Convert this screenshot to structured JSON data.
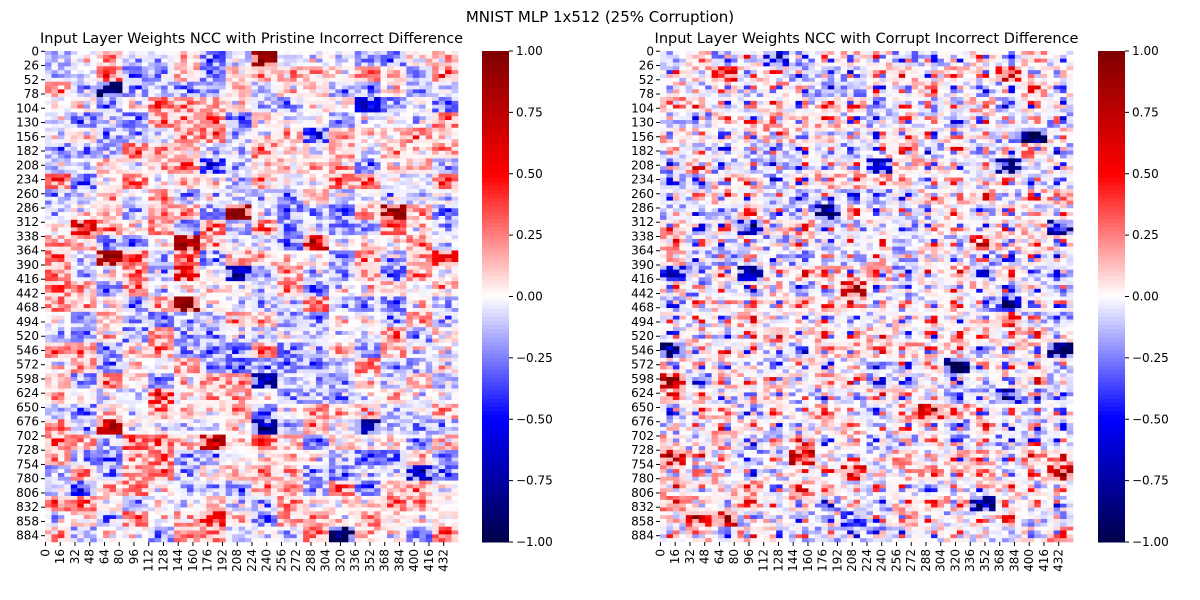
{
  "figure": {
    "suptitle": "MNIST MLP 1x512 (25% Corruption)"
  },
  "chart_data": [
    {
      "type": "heatmap",
      "title": "Input Layer Weights NCC with Pristine Incorrect Difference",
      "xlabel": "",
      "ylabel": "",
      "x_tick_labels": [
        "0",
        "16",
        "32",
        "48",
        "64",
        "80",
        "96",
        "112",
        "128",
        "144",
        "160",
        "176",
        "192",
        "208",
        "224",
        "240",
        "256",
        "272",
        "288",
        "304",
        "320",
        "336",
        "352",
        "368",
        "384",
        "400",
        "416",
        "432"
      ],
      "y_tick_labels": [
        "0",
        "26",
        "52",
        "78",
        "104",
        "130",
        "156",
        "182",
        "208",
        "234",
        "260",
        "286",
        "312",
        "338",
        "364",
        "390",
        "416",
        "442",
        "468",
        "494",
        "520",
        "546",
        "572",
        "598",
        "624",
        "650",
        "676",
        "702",
        "728",
        "754",
        "780",
        "806",
        "832",
        "858",
        "884"
      ],
      "xlim": [
        0,
        448
      ],
      "ylim": [
        0,
        896
      ],
      "colormap": "seismic",
      "colorbar": {
        "vmin": -1.0,
        "vmax": 1.0,
        "tick_labels": [
          "1.00",
          "0.75",
          "0.50",
          "0.25",
          "0.00",
          "−0.25",
          "−0.50",
          "−0.75",
          "−1.00"
        ]
      },
      "legend": "colorbar-right",
      "grid": false
    },
    {
      "type": "heatmap",
      "title": "Input Layer Weights NCC with Corrupt Incorrect Difference",
      "xlabel": "",
      "ylabel": "",
      "x_tick_labels": [
        "0",
        "16",
        "32",
        "48",
        "64",
        "80",
        "96",
        "112",
        "128",
        "144",
        "160",
        "176",
        "192",
        "208",
        "224",
        "240",
        "256",
        "272",
        "288",
        "304",
        "320",
        "336",
        "352",
        "368",
        "384",
        "400",
        "416",
        "432"
      ],
      "y_tick_labels": [
        "0",
        "26",
        "52",
        "78",
        "104",
        "130",
        "156",
        "182",
        "208",
        "234",
        "260",
        "286",
        "312",
        "338",
        "364",
        "390",
        "416",
        "442",
        "468",
        "494",
        "520",
        "546",
        "572",
        "598",
        "624",
        "650",
        "676",
        "702",
        "728",
        "754",
        "780",
        "806",
        "832",
        "858",
        "884"
      ],
      "xlim": [
        0,
        448
      ],
      "ylim": [
        0,
        896
      ],
      "colormap": "seismic",
      "colorbar": {
        "vmin": -1.0,
        "vmax": 1.0,
        "tick_labels": [
          "1.00",
          "0.75",
          "0.50",
          "0.25",
          "0.00",
          "−0.25",
          "−0.50",
          "−0.75",
          "−1.00"
        ]
      },
      "legend": "colorbar-right",
      "grid": false
    }
  ]
}
